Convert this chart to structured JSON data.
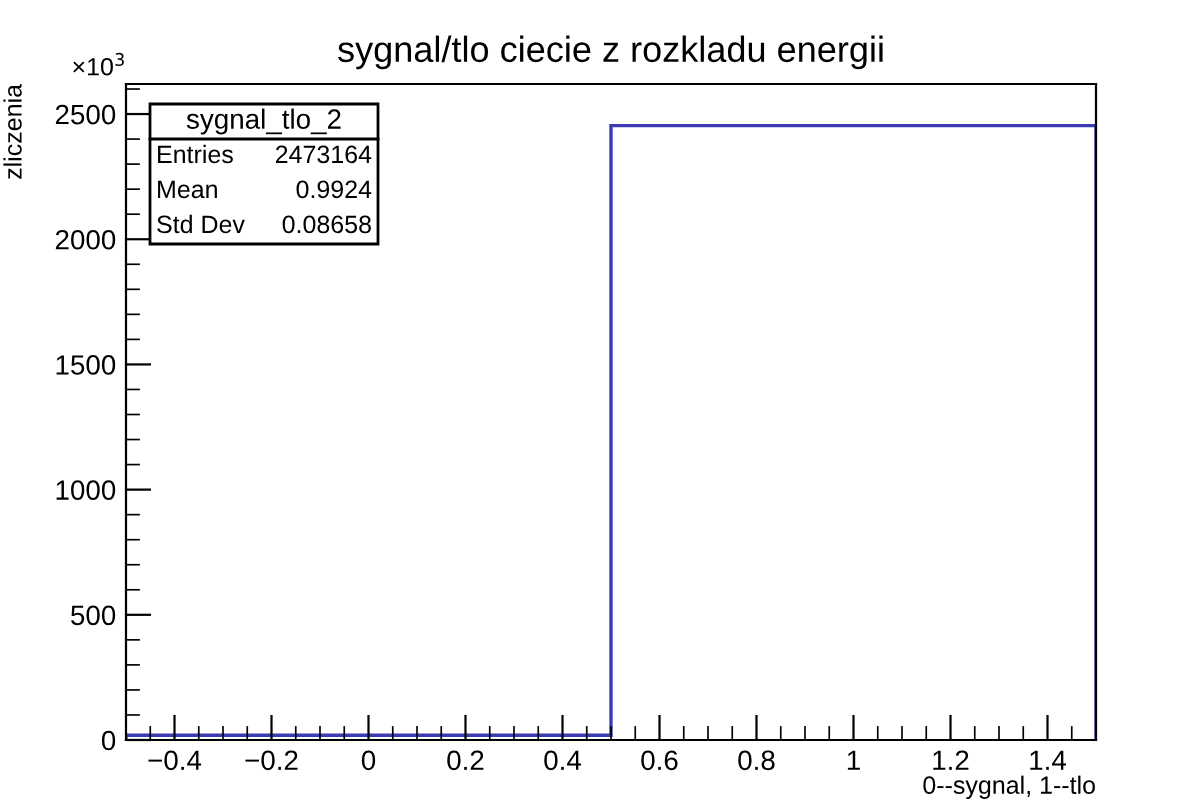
{
  "chart_data": {
    "type": "histogram",
    "title": "sygnal/tlo ciecie z rozkladu energii",
    "xlabel": "0--sygnal, 1--tlo",
    "ylabel": "zliczenia",
    "bins": [
      -0.5,
      0.5,
      1.5
    ],
    "values": [
      19,
      2454
    ],
    "color": "#3b3bb3",
    "xlim": [
      -0.5,
      1.5
    ],
    "xticks": [
      -0.4,
      -0.2,
      0,
      0.2,
      0.4,
      0.6,
      0.8,
      1,
      1.2,
      1.4
    ],
    "ylim": [
      0,
      2620
    ],
    "yticks": [
      0,
      500,
      1000,
      1500,
      2000,
      2500
    ],
    "grid": false,
    "legend": false,
    "annotations": [
      "×10$^{3}$",
      "sygnal_tlo_2",
      "Entries",
      "2473164",
      "Mean",
      "0.9924",
      "Std Dev",
      "0.08658"
    ]
  }
}
